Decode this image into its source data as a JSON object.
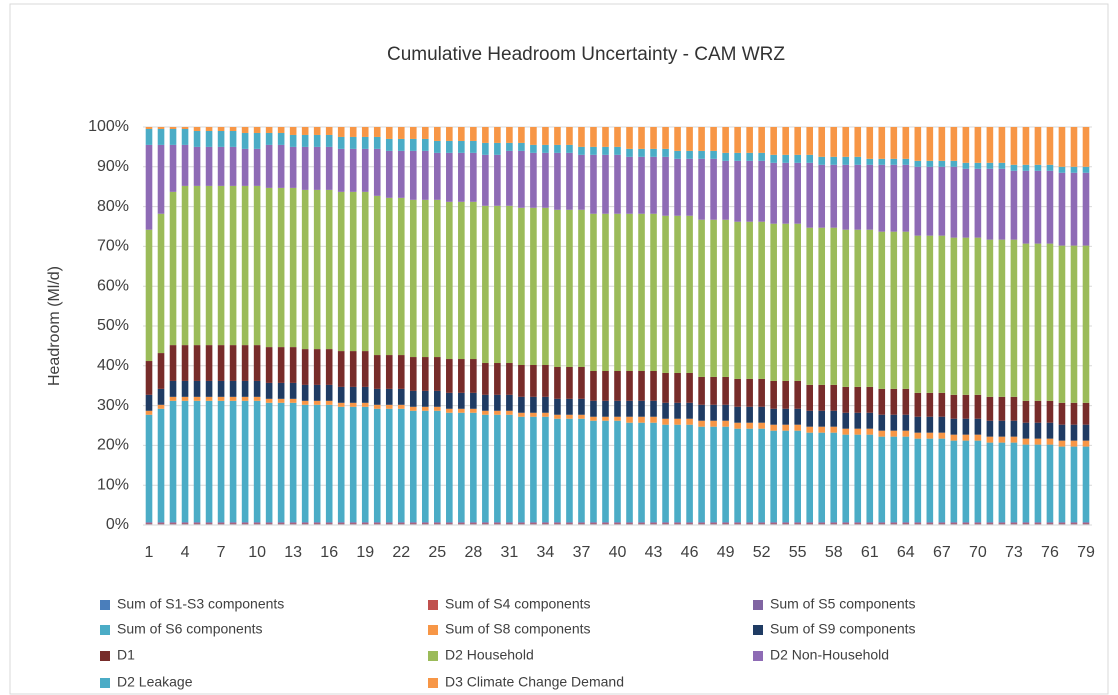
{
  "chart_data": {
    "type": "stacked_bar_percent",
    "title": "Cumulative Headroom Uncertainty - CAM WRZ",
    "y_label": "Headroom (Ml/d)",
    "categories": [
      "1",
      null,
      null,
      "4",
      null,
      null,
      "7",
      null,
      null,
      "10",
      null,
      null,
      "13",
      null,
      null,
      "16",
      null,
      null,
      "19",
      null,
      null,
      "22",
      null,
      null,
      "25",
      null,
      null,
      "28",
      null,
      null,
      "31",
      null,
      null,
      "34",
      null,
      null,
      "37",
      null,
      null,
      "40",
      null,
      null,
      "43",
      null,
      null,
      "46",
      null,
      null,
      "49",
      null,
      null,
      "52",
      null,
      null,
      "55",
      null,
      null,
      "58",
      null,
      null,
      "61",
      null,
      null,
      "64",
      null,
      null,
      "67",
      null,
      null,
      "70",
      null,
      null,
      "73",
      null,
      null,
      "76",
      null,
      null,
      "79"
    ],
    "ylim": [
      0,
      100
    ],
    "yticks": [
      {
        "value": 0,
        "label": "0%"
      },
      {
        "value": 10,
        "label": "10%"
      },
      {
        "value": 20,
        "label": "20%"
      },
      {
        "value": 30,
        "label": "30%"
      },
      {
        "value": 40,
        "label": "40%"
      },
      {
        "value": 50,
        "label": "50%"
      },
      {
        "value": 60,
        "label": "60%"
      },
      {
        "value": 70,
        "label": "70%"
      },
      {
        "value": 80,
        "label": "80%"
      },
      {
        "value": 90,
        "label": "90%"
      },
      {
        "value": 100,
        "label": "100%"
      }
    ],
    "grid": true,
    "series": [
      {
        "name": "Sum of S1-S3 components",
        "color": "#4a7ebb",
        "values": [
          0.2,
          0.2,
          0.2,
          0.2,
          0.2,
          0.2,
          0.2,
          0.2,
          0.2,
          0.2,
          0.2,
          0.2,
          0.2,
          0.2,
          0.2,
          0.2,
          0.2,
          0.2,
          0.2,
          0.2,
          0.2,
          0.2,
          0.2,
          0.2,
          0.2,
          0.2,
          0.2,
          0.2,
          0.2,
          0.2,
          0.2,
          0.2,
          0.2,
          0.2,
          0.2,
          0.2,
          0.2,
          0.2,
          0.2,
          0.2,
          0.2,
          0.2,
          0.2,
          0.2,
          0.2,
          0.2,
          0.2,
          0.2,
          0.2,
          0.2,
          0.2,
          0.2,
          0.2,
          0.2,
          0.2,
          0.2,
          0.2,
          0.2,
          0.2,
          0.2,
          0.2,
          0.2,
          0.2,
          0.2,
          0.2,
          0.2,
          0.2,
          0.2,
          0.2,
          0.2,
          0.2,
          0.2,
          0.2,
          0.2,
          0.2,
          0.2,
          0.2,
          0.2,
          0.2
        ]
      },
      {
        "name": "Sum of S4 components",
        "color": "#c0504d",
        "values": [
          0.2,
          0.2,
          0.2,
          0.2,
          0.2,
          0.2,
          0.2,
          0.2,
          0.2,
          0.2,
          0.2,
          0.2,
          0.2,
          0.2,
          0.2,
          0.2,
          0.2,
          0.2,
          0.2,
          0.2,
          0.2,
          0.2,
          0.2,
          0.2,
          0.2,
          0.2,
          0.2,
          0.2,
          0.2,
          0.2,
          0.2,
          0.2,
          0.2,
          0.2,
          0.2,
          0.2,
          0.2,
          0.2,
          0.2,
          0.2,
          0.2,
          0.2,
          0.2,
          0.2,
          0.2,
          0.2,
          0.2,
          0.2,
          0.2,
          0.2,
          0.2,
          0.2,
          0.2,
          0.2,
          0.2,
          0.2,
          0.2,
          0.2,
          0.2,
          0.2,
          0.2,
          0.2,
          0.2,
          0.2,
          0.2,
          0.2,
          0.2,
          0.2,
          0.2,
          0.2,
          0.2,
          0.2,
          0.2,
          0.2,
          0.2,
          0.2,
          0.2,
          0.2,
          0.2
        ]
      },
      {
        "name": "Sum of S5 components",
        "color": "#8064a2",
        "values": [
          0.3,
          0.3,
          0.3,
          0.3,
          0.3,
          0.3,
          0.3,
          0.3,
          0.3,
          0.3,
          0.3,
          0.3,
          0.3,
          0.3,
          0.3,
          0.3,
          0.3,
          0.3,
          0.3,
          0.3,
          0.3,
          0.3,
          0.3,
          0.3,
          0.3,
          0.3,
          0.3,
          0.3,
          0.3,
          0.3,
          0.3,
          0.3,
          0.3,
          0.3,
          0.3,
          0.3,
          0.3,
          0.3,
          0.3,
          0.3,
          0.3,
          0.3,
          0.3,
          0.3,
          0.3,
          0.3,
          0.3,
          0.3,
          0.3,
          0.3,
          0.3,
          0.3,
          0.3,
          0.3,
          0.3,
          0.3,
          0.3,
          0.3,
          0.3,
          0.3,
          0.3,
          0.3,
          0.3,
          0.3,
          0.3,
          0.3,
          0.3,
          0.3,
          0.3,
          0.3,
          0.3,
          0.3,
          0.3,
          0.3,
          0.3,
          0.3,
          0.3,
          0.3,
          0.3
        ]
      },
      {
        "name": "Sum of S6 components",
        "color": "#4bacc6",
        "values": [
          27,
          28.5,
          30.5,
          30.5,
          30.5,
          30.5,
          30.5,
          30.5,
          30.5,
          30.5,
          30,
          30,
          30,
          29.5,
          29.5,
          29.5,
          29,
          29,
          29,
          28.5,
          28.5,
          28.5,
          28,
          28,
          28,
          27.5,
          27.5,
          27.5,
          27,
          27,
          27,
          26.5,
          26.5,
          26.5,
          26,
          26,
          26,
          25.5,
          25.5,
          25.5,
          25,
          25,
          25,
          24.5,
          24.5,
          24.5,
          24,
          24,
          24,
          23.5,
          23.5,
          23.5,
          23,
          23,
          23,
          22.5,
          22.5,
          22.5,
          22,
          22,
          22,
          21.5,
          21.5,
          21.5,
          21,
          21,
          21,
          20.5,
          20.5,
          20.5,
          20,
          20,
          20,
          19.5,
          19.5,
          19.5,
          19,
          19,
          19
        ]
      },
      {
        "name": "Sum of S8 components",
        "color": "#f79646",
        "values": [
          1,
          1,
          1,
          1,
          1,
          1,
          1,
          1,
          1,
          1,
          1,
          1,
          1,
          1,
          1,
          1,
          1,
          1,
          1,
          1,
          1,
          1,
          1,
          1,
          1,
          1,
          1,
          1,
          1,
          1,
          1,
          1,
          1,
          1,
          1,
          1,
          1,
          1,
          1,
          1,
          1.5,
          1.5,
          1.5,
          1.5,
          1.5,
          1.5,
          1.5,
          1.5,
          1.5,
          1.5,
          1.5,
          1.5,
          1.5,
          1.5,
          1.5,
          1.5,
          1.5,
          1.5,
          1.5,
          1.5,
          1.5,
          1.5,
          1.5,
          1.5,
          1.5,
          1.5,
          1.5,
          1.5,
          1.5,
          1.5,
          1.5,
          1.5,
          1.5,
          1.5,
          1.5,
          1.5,
          1.5,
          1.5,
          1.5
        ]
      },
      {
        "name": "Sum of S9 components",
        "color": "#1f3b63",
        "values": [
          4,
          4,
          4,
          4,
          4,
          4,
          4,
          4,
          4,
          4,
          4,
          4,
          4,
          4,
          4,
          4,
          4,
          4,
          4,
          4,
          4,
          4,
          4,
          4,
          4,
          4,
          4,
          4,
          4,
          4,
          4,
          4,
          4,
          4,
          4,
          4,
          4,
          4,
          4,
          4,
          4,
          4,
          4,
          4,
          4,
          4,
          4,
          4,
          4,
          4,
          4,
          4,
          4,
          4,
          4,
          4,
          4,
          4,
          4,
          4,
          4,
          4,
          4,
          4,
          4,
          4,
          4,
          4,
          4,
          4,
          4,
          4,
          4,
          4,
          4,
          4,
          4,
          4,
          4
        ]
      },
      {
        "name": "D1",
        "color": "#772c2a",
        "values": [
          8.5,
          9,
          9,
          9,
          9,
          9,
          9,
          9,
          9,
          9,
          9,
          9,
          9,
          9,
          9,
          9,
          9,
          9,
          9,
          8.5,
          8.5,
          8.5,
          8.5,
          8.5,
          8.5,
          8.5,
          8.5,
          8.5,
          8,
          8,
          8,
          8,
          8,
          8,
          8,
          8,
          8,
          7.5,
          7.5,
          7.5,
          7.5,
          7.5,
          7.5,
          7.5,
          7.5,
          7.5,
          7,
          7,
          7,
          7,
          7,
          7,
          7,
          7,
          7,
          6.5,
          6.5,
          6.5,
          6.5,
          6.5,
          6.5,
          6.5,
          6.5,
          6.5,
          6,
          6,
          6,
          6,
          6,
          6,
          6,
          6,
          6,
          5.5,
          5.5,
          5.5,
          5.5,
          5.5,
          5.5
        ]
      },
      {
        "name": "D2 Household",
        "color": "#9bbb59",
        "values": [
          33,
          35,
          38.5,
          40,
          40,
          40,
          40,
          40,
          40,
          40,
          40,
          40,
          40,
          40,
          40,
          40,
          40,
          40,
          40,
          40,
          39.5,
          39.5,
          39.5,
          39.5,
          39.5,
          39.5,
          39.5,
          39.5,
          39.5,
          39.5,
          39.5,
          39.5,
          39.5,
          39.5,
          39.5,
          39.5,
          39.5,
          39.5,
          39.5,
          39.5,
          39.5,
          39.5,
          39.5,
          39.5,
          39.5,
          39.5,
          39.5,
          39.5,
          39.5,
          39.5,
          39.5,
          39.5,
          39.5,
          39.5,
          39.5,
          39.5,
          39.5,
          39.5,
          39.5,
          39.5,
          39.5,
          39.5,
          39.5,
          39.5,
          39.5,
          39.5,
          39.5,
          39.5,
          39.5,
          39.5,
          39.5,
          39.5,
          39.5,
          39.5,
          39.5,
          39.5,
          39.5,
          39.5,
          39.5
        ]
      },
      {
        "name": "D2 Non-Household",
        "color": "#8e6bb5",
        "values": [
          21.3,
          17.3,
          11.8,
          10.3,
          9.8,
          9.8,
          9.8,
          9.8,
          9.3,
          9.3,
          10.8,
          10.8,
          10.3,
          10.8,
          10.8,
          10.8,
          10.8,
          10.8,
          10.8,
          11.8,
          11.8,
          11.8,
          12.3,
          12.3,
          11.8,
          12.3,
          12.3,
          12.3,
          12.8,
          12.8,
          13.8,
          14.3,
          13.8,
          13.8,
          14.3,
          14.3,
          13.8,
          14.8,
          14.8,
          14.8,
          14.3,
          14.3,
          14.3,
          14.8,
          14.3,
          14.3,
          15.3,
          15.3,
          14.8,
          15.3,
          15.3,
          15.3,
          15.3,
          15.3,
          15.3,
          16.3,
          15.8,
          15.8,
          16.3,
          16.3,
          16.3,
          16.8,
          16.8,
          16.8,
          17.3,
          17.3,
          17.3,
          17.8,
          17.3,
          17.3,
          17.8,
          17.8,
          17.3,
          18.3,
          18.3,
          18.3,
          18.3,
          18.3,
          18.3
        ]
      },
      {
        "name": "D2 Leakage",
        "color": "#4bacc6",
        "values": [
          4,
          4,
          4,
          4,
          4,
          4,
          4,
          4,
          4,
          4,
          3,
          3,
          3,
          3,
          3,
          3,
          3,
          3,
          3,
          3,
          3,
          3,
          3,
          3,
          3,
          3,
          3,
          3,
          3,
          3,
          2,
          2,
          2,
          2,
          2,
          2,
          2,
          2,
          2,
          2,
          2,
          2,
          2,
          2,
          2,
          2,
          2,
          2,
          2,
          2,
          2,
          2,
          2,
          2,
          2,
          2,
          2,
          2,
          2,
          2,
          1.5,
          1.5,
          1.5,
          1.5,
          1.5,
          1.5,
          1.5,
          1.5,
          1.5,
          1.5,
          1.5,
          1.5,
          1.5,
          1.5,
          1.5,
          1.5,
          1.5,
          1.5,
          1.5
        ]
      },
      {
        "name": "D3 Climate Change Demand",
        "color": "#f79646",
        "values": [
          0.5,
          0.5,
          0.5,
          0.5,
          1,
          1,
          1,
          1,
          1.5,
          1.5,
          1.5,
          1.5,
          2,
          2,
          2,
          2,
          2.5,
          2.5,
          2.5,
          2.5,
          3,
          3,
          3,
          3,
          3.5,
          3.5,
          3.5,
          3.5,
          4,
          4,
          4,
          4,
          4.5,
          4.5,
          4.5,
          4.5,
          5,
          5,
          5,
          5,
          5.5,
          5.5,
          5.5,
          5.5,
          6,
          6,
          6,
          6,
          6.5,
          6.5,
          6.5,
          6.5,
          7,
          7,
          7,
          7,
          7.5,
          7.5,
          7.5,
          7.5,
          8,
          8,
          8,
          8,
          8.5,
          8.5,
          8.5,
          8.5,
          9,
          9,
          9,
          9,
          9.5,
          9.5,
          9.5,
          9.5,
          10,
          10,
          10
        ]
      }
    ]
  }
}
